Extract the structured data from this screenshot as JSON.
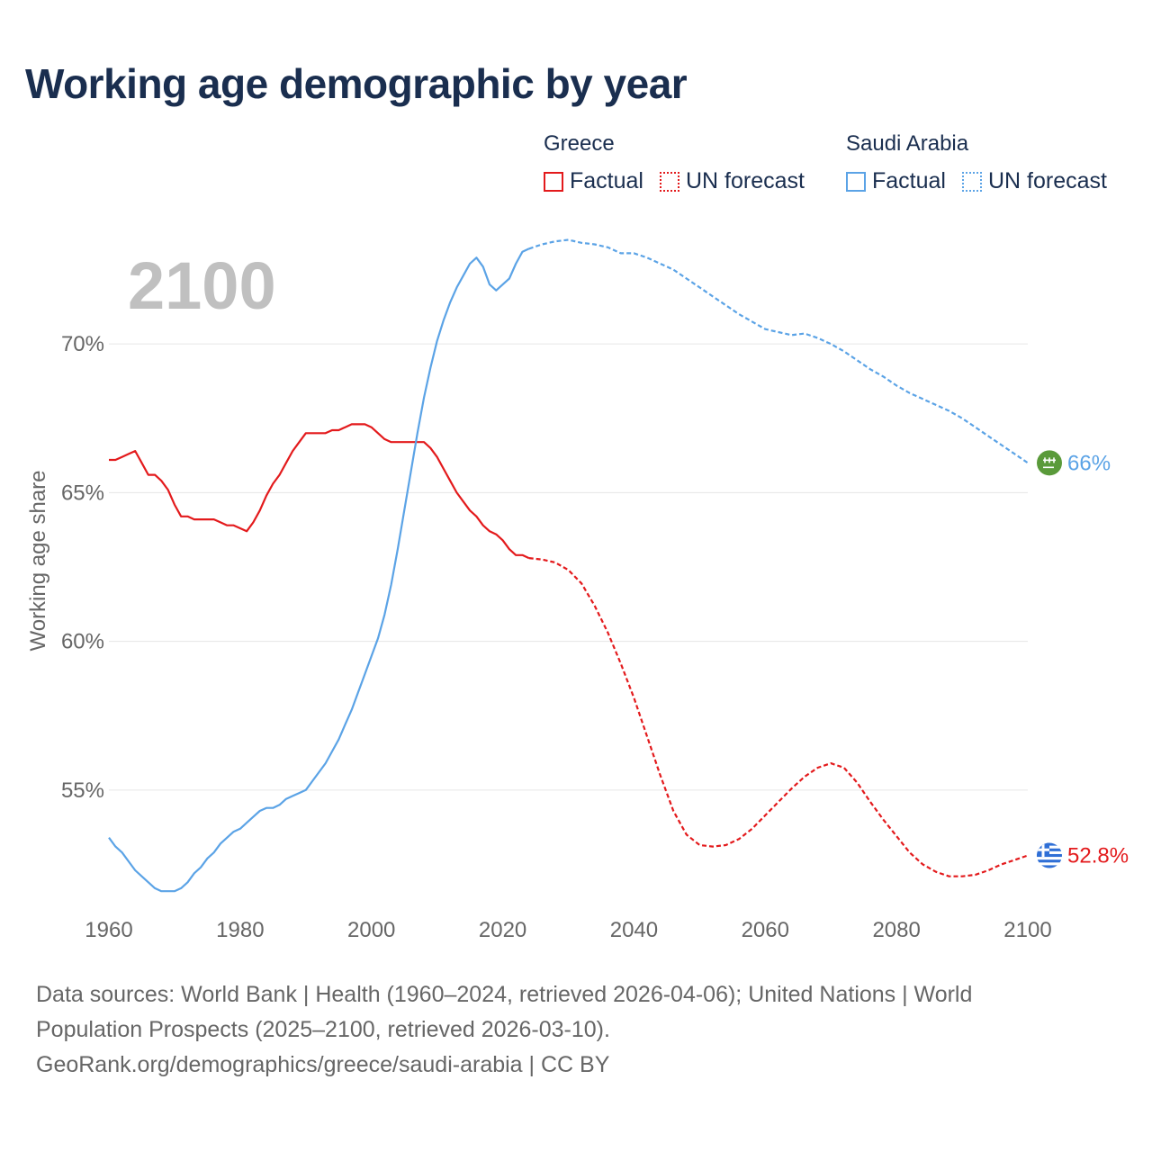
{
  "title": "Working age demographic by year",
  "legend": [
    {
      "group": "Greece",
      "color": "#e31a1c",
      "factual_label": "Factual",
      "forecast_label": "UN forecast"
    },
    {
      "group": "Saudi Arabia",
      "color": "#5ba3e6",
      "factual_label": "Factual",
      "forecast_label": "UN forecast"
    }
  ],
  "year_watermark": "2100",
  "footer": {
    "line1": "Data sources: World Bank | Health (1960–2024, retrieved 2026-04-06); United Nations | World Population Prospects (2025–2100, retrieved 2026-03-10).",
    "line2": "GeoRank.org/demographics/greece/saudi-arabia | CC BY"
  },
  "chart_data": {
    "type": "line",
    "title": "Working age demographic by year",
    "xlabel": "",
    "ylabel": "Working age share",
    "xlim": [
      1960,
      2100
    ],
    "ylim": [
      51,
      74
    ],
    "x_ticks": [
      1960,
      1980,
      2000,
      2020,
      2040,
      2060,
      2080,
      2100
    ],
    "x_tick_labels": [
      "1960",
      "1980",
      "2000",
      "2020",
      "2040",
      "2060",
      "2080",
      "2100"
    ],
    "y_ticks": [
      55,
      60,
      65,
      70
    ],
    "y_tick_labels": [
      "55%",
      "60%",
      "65%",
      "70%"
    ],
    "grid": true,
    "factual_end_year": 2024,
    "series": [
      {
        "name": "Greece",
        "color": "#e31a1c",
        "end_label": "52.8%",
        "points": [
          [
            1960,
            66.1
          ],
          [
            1961,
            66.1
          ],
          [
            1962,
            66.2
          ],
          [
            1963,
            66.3
          ],
          [
            1964,
            66.4
          ],
          [
            1965,
            66.0
          ],
          [
            1966,
            65.6
          ],
          [
            1967,
            65.6
          ],
          [
            1968,
            65.4
          ],
          [
            1969,
            65.1
          ],
          [
            1970,
            64.6
          ],
          [
            1971,
            64.2
          ],
          [
            1972,
            64.2
          ],
          [
            1973,
            64.1
          ],
          [
            1974,
            64.1
          ],
          [
            1975,
            64.1
          ],
          [
            1976,
            64.1
          ],
          [
            1977,
            64.0
          ],
          [
            1978,
            63.9
          ],
          [
            1979,
            63.9
          ],
          [
            1980,
            63.8
          ],
          [
            1981,
            63.7
          ],
          [
            1982,
            64.0
          ],
          [
            1983,
            64.4
          ],
          [
            1984,
            64.9
          ],
          [
            1985,
            65.3
          ],
          [
            1986,
            65.6
          ],
          [
            1987,
            66.0
          ],
          [
            1988,
            66.4
          ],
          [
            1989,
            66.7
          ],
          [
            1990,
            67.0
          ],
          [
            1991,
            67.0
          ],
          [
            1992,
            67.0
          ],
          [
            1993,
            67.0
          ],
          [
            1994,
            67.1
          ],
          [
            1995,
            67.1
          ],
          [
            1996,
            67.2
          ],
          [
            1997,
            67.3
          ],
          [
            1998,
            67.3
          ],
          [
            1999,
            67.3
          ],
          [
            2000,
            67.2
          ],
          [
            2001,
            67.0
          ],
          [
            2002,
            66.8
          ],
          [
            2003,
            66.7
          ],
          [
            2004,
            66.7
          ],
          [
            2005,
            66.7
          ],
          [
            2006,
            66.7
          ],
          [
            2007,
            66.7
          ],
          [
            2008,
            66.7
          ],
          [
            2009,
            66.5
          ],
          [
            2010,
            66.2
          ],
          [
            2011,
            65.8
          ],
          [
            2012,
            65.4
          ],
          [
            2013,
            65.0
          ],
          [
            2014,
            64.7
          ],
          [
            2015,
            64.4
          ],
          [
            2016,
            64.2
          ],
          [
            2017,
            63.9
          ],
          [
            2018,
            63.7
          ],
          [
            2019,
            63.6
          ],
          [
            2020,
            63.4
          ],
          [
            2021,
            63.1
          ],
          [
            2022,
            62.9
          ],
          [
            2023,
            62.9
          ],
          [
            2024,
            62.8
          ],
          [
            2026,
            62.75
          ],
          [
            2028,
            62.65
          ],
          [
            2030,
            62.4
          ],
          [
            2032,
            61.95
          ],
          [
            2034,
            61.2
          ],
          [
            2036,
            60.3
          ],
          [
            2038,
            59.25
          ],
          [
            2040,
            58.1
          ],
          [
            2042,
            56.8
          ],
          [
            2044,
            55.5
          ],
          [
            2046,
            54.3
          ],
          [
            2048,
            53.5
          ],
          [
            2050,
            53.15
          ],
          [
            2052,
            53.1
          ],
          [
            2054,
            53.15
          ],
          [
            2056,
            53.35
          ],
          [
            2058,
            53.7
          ],
          [
            2060,
            54.15
          ],
          [
            2062,
            54.6
          ],
          [
            2064,
            55.05
          ],
          [
            2066,
            55.45
          ],
          [
            2068,
            55.75
          ],
          [
            2070,
            55.9
          ],
          [
            2072,
            55.75
          ],
          [
            2074,
            55.25
          ],
          [
            2076,
            54.6
          ],
          [
            2078,
            54.0
          ],
          [
            2080,
            53.45
          ],
          [
            2082,
            52.9
          ],
          [
            2084,
            52.5
          ],
          [
            2086,
            52.25
          ],
          [
            2088,
            52.1
          ],
          [
            2090,
            52.1
          ],
          [
            2092,
            52.15
          ],
          [
            2094,
            52.3
          ],
          [
            2096,
            52.5
          ],
          [
            2098,
            52.65
          ],
          [
            2100,
            52.8
          ]
        ]
      },
      {
        "name": "Saudi Arabia",
        "color": "#5ba3e6",
        "end_label": "66%",
        "points": [
          [
            1960,
            53.4
          ],
          [
            1961,
            53.1
          ],
          [
            1962,
            52.9
          ],
          [
            1963,
            52.6
          ],
          [
            1964,
            52.3
          ],
          [
            1965,
            52.1
          ],
          [
            1966,
            51.9
          ],
          [
            1967,
            51.7
          ],
          [
            1968,
            51.6
          ],
          [
            1969,
            51.6
          ],
          [
            1970,
            51.6
          ],
          [
            1971,
            51.7
          ],
          [
            1972,
            51.9
          ],
          [
            1973,
            52.2
          ],
          [
            1974,
            52.4
          ],
          [
            1975,
            52.7
          ],
          [
            1976,
            52.9
          ],
          [
            1977,
            53.2
          ],
          [
            1978,
            53.4
          ],
          [
            1979,
            53.6
          ],
          [
            1980,
            53.7
          ],
          [
            1981,
            53.9
          ],
          [
            1982,
            54.1
          ],
          [
            1983,
            54.3
          ],
          [
            1984,
            54.4
          ],
          [
            1985,
            54.4
          ],
          [
            1986,
            54.5
          ],
          [
            1987,
            54.7
          ],
          [
            1988,
            54.8
          ],
          [
            1989,
            54.9
          ],
          [
            1990,
            55.0
          ],
          [
            1991,
            55.3
          ],
          [
            1992,
            55.6
          ],
          [
            1993,
            55.9
          ],
          [
            1994,
            56.3
          ],
          [
            1995,
            56.7
          ],
          [
            1996,
            57.2
          ],
          [
            1997,
            57.7
          ],
          [
            1998,
            58.3
          ],
          [
            1999,
            58.9
          ],
          [
            2000,
            59.5
          ],
          [
            2001,
            60.1
          ],
          [
            2002,
            60.9
          ],
          [
            2003,
            61.9
          ],
          [
            2004,
            63.1
          ],
          [
            2005,
            64.4
          ],
          [
            2006,
            65.7
          ],
          [
            2007,
            67.0
          ],
          [
            2008,
            68.2
          ],
          [
            2009,
            69.2
          ],
          [
            2010,
            70.1
          ],
          [
            2011,
            70.8
          ],
          [
            2012,
            71.4
          ],
          [
            2013,
            71.9
          ],
          [
            2014,
            72.3
          ],
          [
            2015,
            72.7
          ],
          [
            2016,
            72.9
          ],
          [
            2017,
            72.6
          ],
          [
            2018,
            72.0
          ],
          [
            2019,
            71.8
          ],
          [
            2020,
            72.0
          ],
          [
            2021,
            72.2
          ],
          [
            2022,
            72.7
          ],
          [
            2023,
            73.1
          ],
          [
            2024,
            73.2
          ],
          [
            2026,
            73.35
          ],
          [
            2028,
            73.45
          ],
          [
            2030,
            73.5
          ],
          [
            2032,
            73.4
          ],
          [
            2034,
            73.35
          ],
          [
            2036,
            73.25
          ],
          [
            2038,
            73.05
          ],
          [
            2040,
            73.05
          ],
          [
            2042,
            72.9
          ],
          [
            2044,
            72.7
          ],
          [
            2046,
            72.5
          ],
          [
            2048,
            72.2
          ],
          [
            2050,
            71.9
          ],
          [
            2052,
            71.6
          ],
          [
            2054,
            71.3
          ],
          [
            2056,
            71.0
          ],
          [
            2058,
            70.75
          ],
          [
            2060,
            70.5
          ],
          [
            2062,
            70.4
          ],
          [
            2064,
            70.3
          ],
          [
            2066,
            70.35
          ],
          [
            2068,
            70.2
          ],
          [
            2070,
            70.0
          ],
          [
            2072,
            69.75
          ],
          [
            2074,
            69.45
          ],
          [
            2076,
            69.15
          ],
          [
            2078,
            68.9
          ],
          [
            2080,
            68.6
          ],
          [
            2082,
            68.35
          ],
          [
            2084,
            68.15
          ],
          [
            2086,
            67.95
          ],
          [
            2088,
            67.75
          ],
          [
            2090,
            67.5
          ],
          [
            2092,
            67.2
          ],
          [
            2094,
            66.9
          ],
          [
            2096,
            66.6
          ],
          [
            2098,
            66.3
          ],
          [
            2100,
            66.0
          ]
        ]
      }
    ]
  }
}
